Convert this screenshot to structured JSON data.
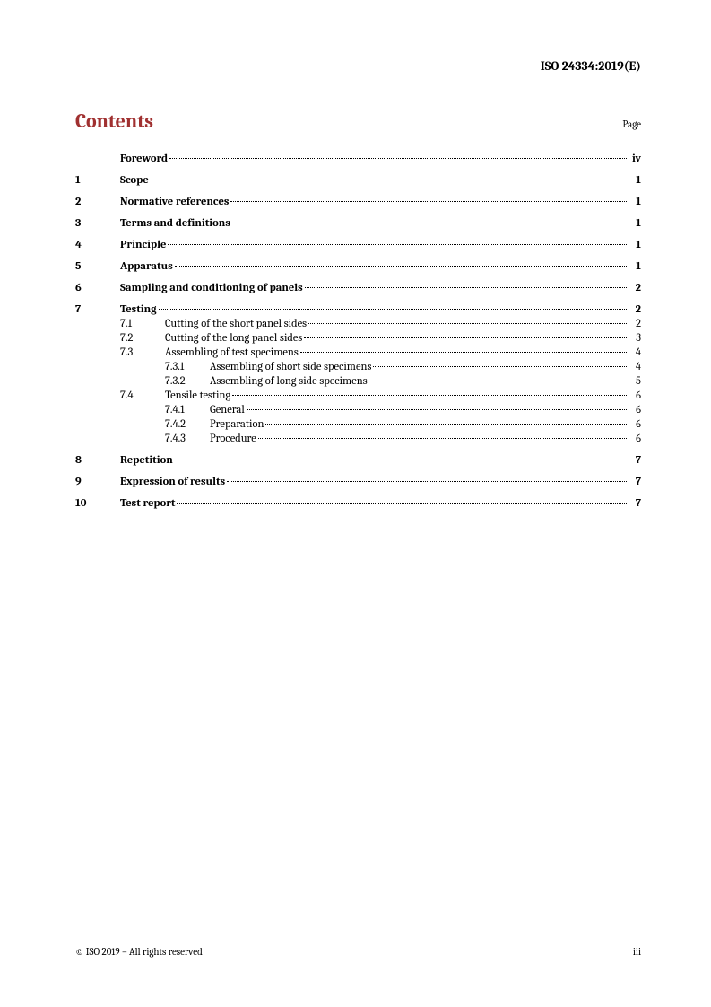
{
  "header": {
    "standard": "ISO 24334:2019(E)"
  },
  "title": "Contents",
  "page_label": "Page",
  "toc": [
    {
      "level": 0,
      "num": "",
      "title": "Foreword",
      "page": "iv",
      "foreword": true
    },
    {
      "level": 0,
      "num": "1",
      "title": "Scope",
      "page": "1"
    },
    {
      "level": 0,
      "num": "2",
      "title": "Normative references",
      "page": "1"
    },
    {
      "level": 0,
      "num": "3",
      "title": "Terms and definitions",
      "page": "1"
    },
    {
      "level": 0,
      "num": "4",
      "title": "Principle",
      "page": "1"
    },
    {
      "level": 0,
      "num": "5",
      "title": "Apparatus",
      "page": "1"
    },
    {
      "level": 0,
      "num": "6",
      "title": "Sampling and conditioning of panels",
      "page": "2"
    },
    {
      "level": 0,
      "num": "7",
      "title": "Testing",
      "page": "2"
    },
    {
      "level": 1,
      "num": "7.1",
      "title": "Cutting of the short panel sides",
      "page": "2"
    },
    {
      "level": 1,
      "num": "7.2",
      "title": "Cutting of the long panel sides",
      "page": "3"
    },
    {
      "level": 1,
      "num": "7.3",
      "title": "Assembling of test specimens",
      "page": "4"
    },
    {
      "level": 2,
      "num": "7.3.1",
      "title": "Assembling of short side specimens",
      "page": "4"
    },
    {
      "level": 2,
      "num": "7.3.2",
      "title": "Assembling of long side specimens",
      "page": "5"
    },
    {
      "level": 1,
      "num": "7.4",
      "title": "Tensile testing",
      "page": "6"
    },
    {
      "level": 2,
      "num": "7.4.1",
      "title": "General",
      "page": "6"
    },
    {
      "level": 2,
      "num": "7.4.2",
      "title": "Preparation",
      "page": "6"
    },
    {
      "level": 2,
      "num": "7.4.3",
      "title": "Procedure",
      "page": "6"
    },
    {
      "level": 0,
      "num": "8",
      "title": "Repetition",
      "page": "7"
    },
    {
      "level": 0,
      "num": "9",
      "title": "Expression of results",
      "page": "7"
    },
    {
      "level": 0,
      "num": "10",
      "title": "Test report",
      "page": "7"
    }
  ],
  "footer": {
    "copyright": "© ISO 2019 – All rights reserved",
    "page_number": "iii"
  },
  "colors": {
    "accent": "#a03030",
    "text": "#000000",
    "bg": "#ffffff"
  }
}
